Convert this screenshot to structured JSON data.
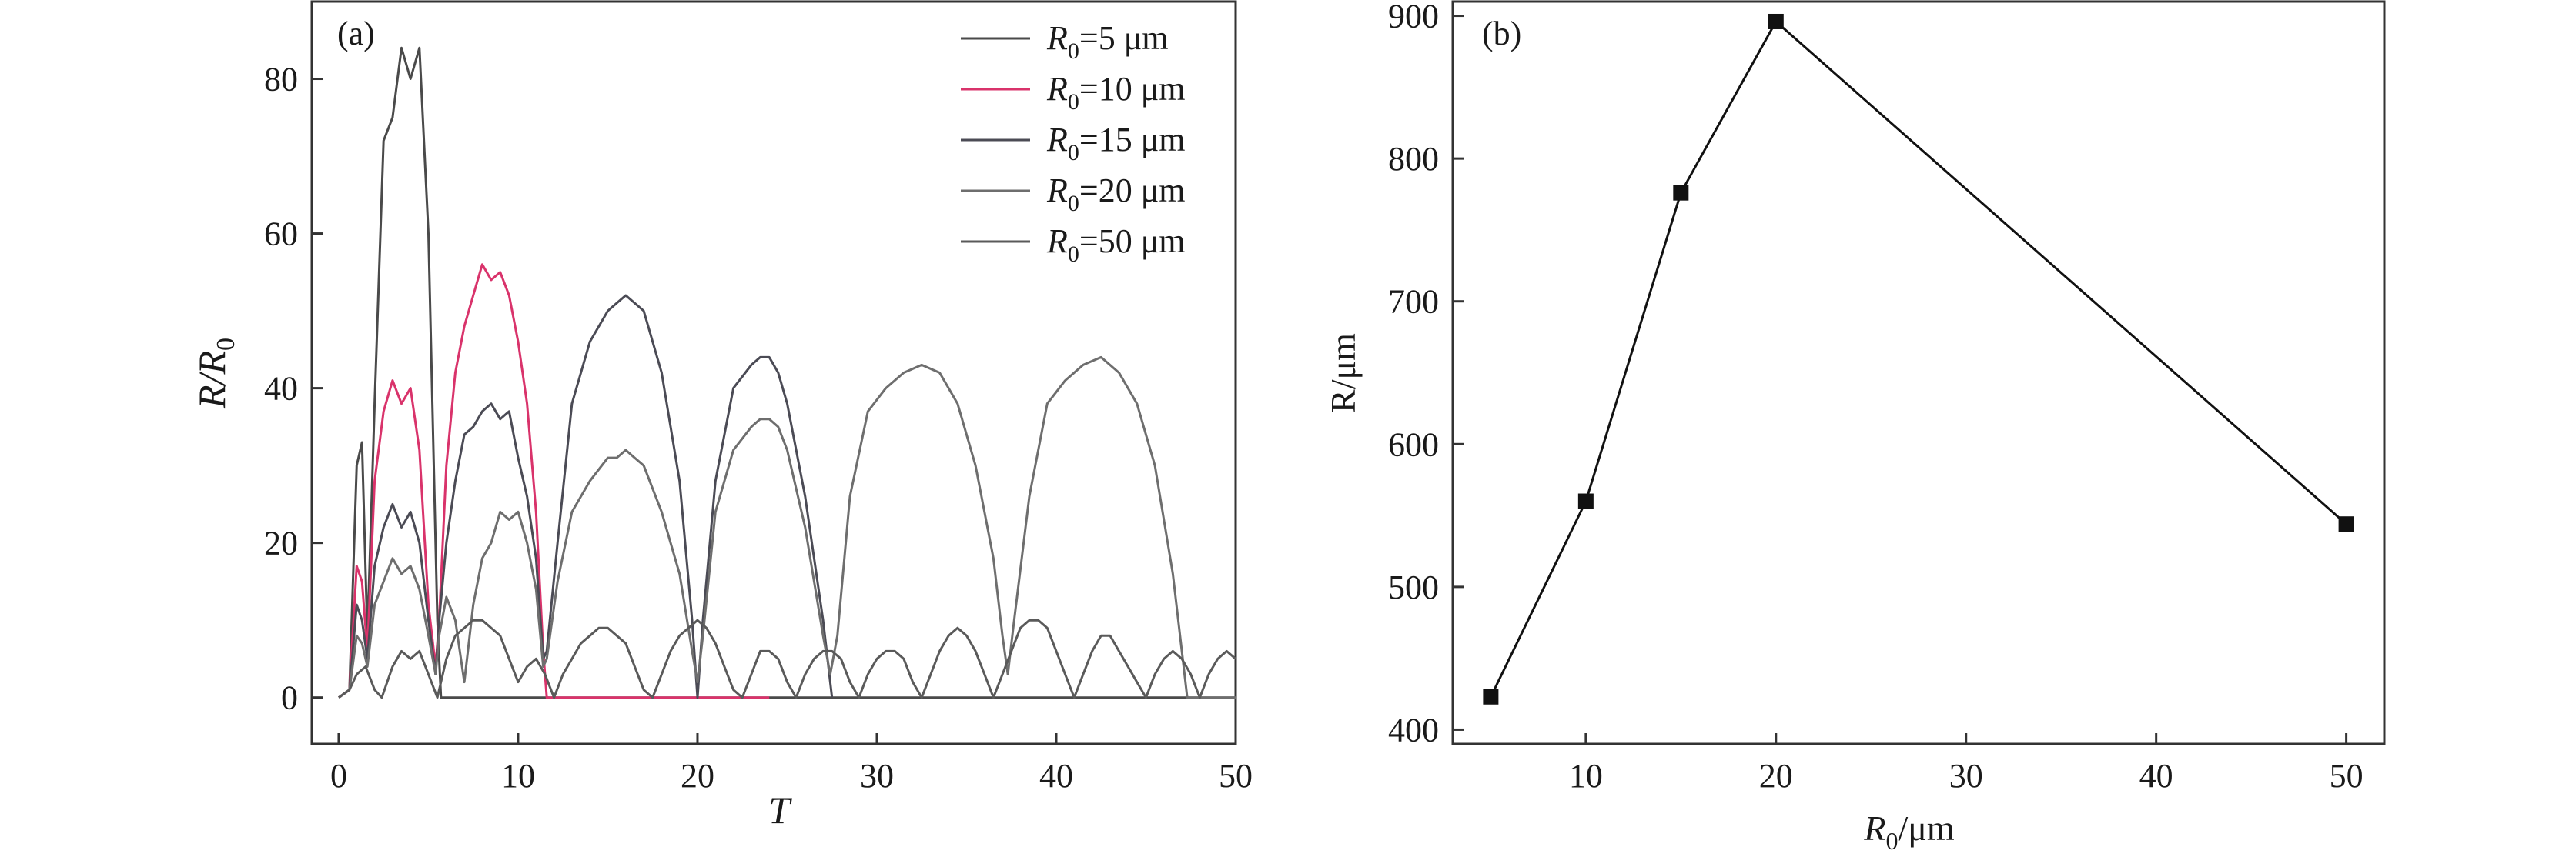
{
  "chart_data": [
    {
      "type": "line",
      "panel_label": "(a)",
      "xlabel": "T",
      "ylabel": {
        "main": "R/R",
        "sub": "0"
      },
      "xlim": [
        -1.5,
        50
      ],
      "ylim": [
        -6,
        90
      ],
      "xticks": [
        0,
        10,
        20,
        30,
        40,
        50
      ],
      "yticks": [
        0,
        20,
        40,
        60,
        80
      ],
      "legend_position": "top-right",
      "series": [
        {
          "name": {
            "prefix": "R",
            "sub": "0",
            "suffix": "=5 μm"
          },
          "color": "#4a4a4a",
          "x": [
            0,
            0.6,
            1.0,
            1.3,
            1.6,
            2.0,
            2.5,
            3.0,
            3.5,
            4.0,
            4.5,
            5.0,
            5.5,
            5.7,
            5.8,
            50
          ],
          "y": [
            0,
            1,
            30,
            33,
            8,
            38,
            72,
            75,
            84,
            80,
            84,
            60,
            10,
            0,
            0,
            0
          ]
        },
        {
          "name": {
            "prefix": "R",
            "sub": "0",
            "suffix": "=10 μm"
          },
          "color": "#d9336b",
          "x": [
            0,
            0.6,
            1.0,
            1.3,
            1.6,
            2.0,
            2.5,
            3.0,
            3.5,
            4.0,
            4.5,
            5.0,
            5.4,
            5.6,
            6.0,
            6.5,
            7.0,
            7.5,
            8.0,
            8.5,
            9.0,
            9.5,
            10.0,
            10.5,
            11.0,
            11.4,
            11.6,
            24.0
          ],
          "y": [
            0,
            1,
            17,
            15,
            6,
            28,
            37,
            41,
            38,
            40,
            32,
            12,
            4,
            10,
            30,
            42,
            48,
            52,
            56,
            54,
            55,
            52,
            46,
            38,
            24,
            6,
            0,
            0
          ]
        },
        {
          "name": {
            "prefix": "R",
            "sub": "0",
            "suffix": "=15 μm"
          },
          "color": "#4b4b55",
          "x": [
            0,
            0.6,
            1.0,
            1.3,
            1.6,
            2.0,
            2.5,
            3.0,
            3.5,
            4.0,
            4.5,
            5.0,
            5.4,
            5.6,
            6.0,
            6.5,
            7.0,
            7.5,
            8.0,
            8.5,
            9.0,
            9.5,
            10.0,
            10.5,
            11.0,
            11.4,
            11.6,
            12.2,
            13.0,
            14.0,
            15.0,
            15.5,
            16.0,
            16.5,
            17.0,
            18.0,
            19.0,
            19.7,
            20.0,
            20.3,
            21.0,
            22.0,
            23.0,
            23.5,
            24.0,
            24.5,
            25.0,
            26.0,
            27.0,
            27.5
          ],
          "y": [
            0,
            1,
            12,
            10,
            5,
            17,
            22,
            25,
            22,
            24,
            20,
            10,
            3,
            10,
            20,
            28,
            34,
            35,
            37,
            38,
            36,
            37,
            31,
            26,
            18,
            5,
            6,
            20,
            38,
            46,
            50,
            51,
            52,
            51,
            50,
            42,
            28,
            10,
            0,
            10,
            28,
            40,
            43,
            44,
            44,
            42,
            38,
            26,
            10,
            0
          ]
        },
        {
          "name": {
            "prefix": "R",
            "sub": "0",
            "suffix": "=20 μm"
          },
          "color": "#6e6e6e",
          "x": [
            0,
            0.6,
            1.0,
            1.3,
            1.6,
            2.0,
            2.5,
            3.0,
            3.5,
            4.0,
            4.5,
            5.0,
            5.4,
            5.6,
            6.0,
            6.5,
            7.0,
            7.5,
            8.0,
            8.5,
            9.0,
            9.5,
            10.0,
            10.5,
            11.0,
            11.4,
            11.6,
            12.2,
            13.0,
            14.0,
            15.0,
            15.5,
            16.0,
            16.5,
            17.0,
            18.0,
            19.0,
            19.7,
            20.0,
            20.3,
            21.0,
            22.0,
            23.0,
            23.5,
            24.0,
            24.5,
            25.0,
            26.0,
            27.0,
            27.4,
            27.8,
            28.5,
            29.5,
            30.5,
            31.5,
            32.5,
            33.5,
            34.5,
            35.5,
            36.5,
            37.0,
            37.3,
            37.6,
            38.5,
            39.5,
            40.5,
            41.5,
            42.5,
            43.5,
            44.5,
            45.5,
            46.5,
            47.0,
            47.3,
            50
          ],
          "y": [
            0,
            1,
            8,
            7,
            4,
            12,
            15,
            18,
            16,
            17,
            14,
            8,
            3,
            8,
            13,
            10,
            2,
            12,
            18,
            20,
            24,
            23,
            24,
            20,
            14,
            4,
            5,
            15,
            24,
            28,
            31,
            31,
            32,
            31,
            30,
            24,
            16,
            6,
            2,
            8,
            24,
            32,
            35,
            36,
            36,
            35,
            32,
            22,
            8,
            3,
            8,
            26,
            37,
            40,
            42,
            43,
            42,
            38,
            30,
            18,
            8,
            3,
            9,
            26,
            38,
            41,
            43,
            44,
            42,
            38,
            30,
            16,
            6,
            0,
            0
          ]
        },
        {
          "name": {
            "prefix": "R",
            "sub": "0",
            "suffix": "=50 μm"
          },
          "color": "#5a5a5a",
          "x": [
            0,
            0.6,
            1.0,
            1.5,
            2.0,
            2.4,
            3.0,
            3.5,
            4.0,
            4.5,
            5.0,
            5.5,
            6.0,
            6.5,
            7.0,
            7.5,
            8.0,
            8.5,
            9.0,
            9.5,
            10.0,
            10.5,
            11.0,
            11.5,
            12.0,
            12.5,
            13.0,
            13.5,
            14.0,
            14.5,
            15.0,
            15.5,
            16.0,
            16.5,
            17.0,
            17.5,
            18.0,
            18.5,
            19.0,
            19.5,
            20.0,
            20.5,
            21.0,
            21.5,
            22.0,
            22.5,
            23.0,
            23.5,
            24.0,
            24.5,
            25.0,
            25.5,
            26.0,
            26.5,
            27.0,
            27.5,
            28.0,
            28.5,
            29.0,
            29.5,
            30.0,
            30.5,
            31.0,
            31.5,
            32.0,
            32.5,
            33.0,
            33.5,
            34.0,
            34.5,
            35.0,
            35.5,
            36.0,
            36.5,
            37.0,
            37.5,
            38.0,
            38.5,
            39.0,
            39.5,
            40.0,
            40.5,
            41.0,
            41.5,
            42.0,
            42.5,
            43.0,
            43.5,
            44.0,
            44.5,
            45.0,
            45.5,
            46.0,
            46.5,
            47.0,
            47.5,
            48.0,
            48.5,
            49.0,
            49.5,
            50.0
          ],
          "y": [
            0,
            1,
            3,
            4,
            1,
            0,
            4,
            6,
            5,
            6,
            3,
            0,
            5,
            8,
            9,
            10,
            10,
            9,
            8,
            5,
            2,
            4,
            5,
            3,
            0,
            3,
            5,
            7,
            8,
            9,
            9,
            8,
            7,
            4,
            1,
            0,
            3,
            6,
            8,
            9,
            10,
            9,
            7,
            4,
            1,
            0,
            3,
            6,
            6,
            5,
            2,
            0,
            3,
            5,
            6,
            6,
            5,
            2,
            0,
            3,
            5,
            6,
            6,
            5,
            2,
            0,
            3,
            6,
            8,
            9,
            8,
            6,
            3,
            0,
            3,
            6,
            9,
            10,
            10,
            9,
            6,
            3,
            0,
            3,
            6,
            8,
            8,
            6,
            4,
            2,
            0,
            3,
            5,
            6,
            5,
            3,
            0,
            3,
            5,
            6,
            5
          ]
        }
      ]
    },
    {
      "type": "line",
      "panel_label": "(b)",
      "xlabel": {
        "main": "R",
        "sub": "0",
        "suffix": "/μm"
      },
      "ylabel": "R/μm",
      "xlim": [
        3,
        52
      ],
      "ylim": [
        390,
        910
      ],
      "xticks": [
        10,
        20,
        30,
        40,
        50
      ],
      "yticks": [
        400,
        500,
        600,
        700,
        800,
        900
      ],
      "marker": "square",
      "color": "#111111",
      "x": [
        5,
        10,
        15,
        20,
        50
      ],
      "y": [
        423,
        560,
        776,
        896,
        544
      ]
    }
  ]
}
